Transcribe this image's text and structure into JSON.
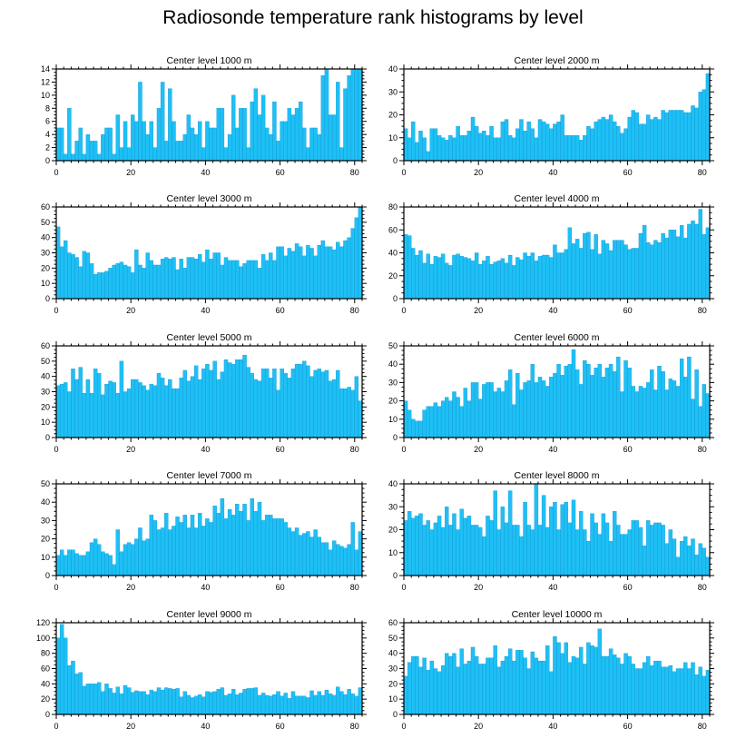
{
  "page": {
    "title": "Radiosonde temperature rank histograms by level"
  },
  "colors": {
    "bar": "#1ec0f5",
    "bar_edge": "#0a88c8",
    "axis": "#000000"
  },
  "chart_data": [
    {
      "type": "bar",
      "title": "Center level 1000 m",
      "xlim": [
        0,
        82
      ],
      "ylim": [
        0,
        14
      ],
      "xticks": [
        0,
        20,
        40,
        60,
        80
      ],
      "yticks": [
        0,
        2,
        4,
        6,
        8,
        10,
        12,
        14
      ],
      "xtick_labels": [
        "0",
        "20",
        "40",
        "60",
        "80"
      ],
      "ytick_labels": [
        "0",
        "2",
        "4",
        "6",
        "8",
        "10",
        "12",
        "14"
      ],
      "values": [
        5,
        5,
        1,
        8,
        1,
        3,
        5,
        1,
        4,
        3,
        3,
        1,
        4,
        5,
        5,
        1,
        7,
        2,
        6,
        2,
        7,
        6,
        12,
        6,
        4,
        6,
        2,
        8,
        12,
        3,
        11,
        6,
        3,
        3,
        4,
        7,
        5,
        4,
        6,
        2,
        6,
        5,
        5,
        8,
        8,
        2,
        4,
        10,
        5,
        8,
        8,
        2,
        9,
        11,
        7,
        10,
        5,
        4,
        9,
        3,
        6,
        6,
        8,
        7,
        8,
        9,
        5,
        2,
        5,
        5,
        4,
        13,
        14,
        7,
        7,
        12,
        2,
        11,
        13,
        14,
        14,
        14
      ]
    },
    {
      "type": "bar",
      "title": "Center level 2000 m",
      "xlim": [
        0,
        82
      ],
      "ylim": [
        0,
        40
      ],
      "xticks": [
        0,
        20,
        40,
        60,
        80
      ],
      "yticks": [
        0,
        10,
        20,
        30,
        40
      ],
      "xtick_labels": [
        "0",
        "20",
        "40",
        "60",
        "80"
      ],
      "ytick_labels": [
        "0",
        "10",
        "20",
        "30",
        "40"
      ],
      "values": [
        14,
        10,
        17,
        8,
        13,
        10,
        4,
        14,
        14,
        11,
        10,
        9,
        11,
        10,
        15,
        11,
        11,
        13,
        19,
        15,
        12,
        13,
        11,
        15,
        10,
        10,
        17,
        18,
        11,
        10,
        14,
        18,
        13,
        17,
        14,
        10,
        18,
        17,
        16,
        14,
        16,
        17,
        20,
        11,
        11,
        11,
        11,
        9,
        11,
        15,
        14,
        17,
        18,
        19,
        18,
        20,
        17,
        15,
        12,
        14,
        19,
        22,
        21,
        16,
        16,
        20,
        18,
        19,
        18,
        22,
        21,
        22,
        22,
        22,
        22,
        21,
        21,
        24,
        23,
        30,
        31,
        38
      ]
    },
    {
      "type": "bar",
      "title": "Center level 3000 m",
      "xlim": [
        0,
        82
      ],
      "ylim": [
        0,
        60
      ],
      "xticks": [
        0,
        20,
        40,
        60,
        80
      ],
      "yticks": [
        0,
        10,
        20,
        30,
        40,
        50,
        60
      ],
      "xtick_labels": [
        "0",
        "20",
        "40",
        "60",
        "80"
      ],
      "ytick_labels": [
        "0",
        "10",
        "20",
        "30",
        "40",
        "50",
        "60"
      ],
      "values": [
        47,
        34,
        38,
        30,
        29,
        27,
        21,
        31,
        30,
        23,
        16,
        17,
        17,
        18,
        20,
        22,
        23,
        24,
        22,
        21,
        17,
        32,
        22,
        20,
        30,
        25,
        22,
        22,
        26,
        27,
        26,
        27,
        19,
        26,
        20,
        27,
        27,
        26,
        29,
        24,
        32,
        26,
        30,
        30,
        22,
        27,
        25,
        25,
        25,
        21,
        23,
        25,
        25,
        25,
        20,
        29,
        25,
        30,
        25,
        34,
        34,
        28,
        33,
        31,
        36,
        34,
        28,
        35,
        33,
        28,
        35,
        38,
        34,
        34,
        32,
        37,
        34,
        38,
        40,
        46,
        53,
        60
      ]
    },
    {
      "type": "bar",
      "title": "Center level 4000 m",
      "xlim": [
        0,
        82
      ],
      "ylim": [
        0,
        80
      ],
      "xticks": [
        0,
        20,
        40,
        60,
        80
      ],
      "yticks": [
        0,
        20,
        40,
        60,
        80
      ],
      "xtick_labels": [
        "0",
        "20",
        "40",
        "60",
        "80"
      ],
      "ytick_labels": [
        "0",
        "20",
        "40",
        "60",
        "80"
      ],
      "values": [
        56,
        55,
        44,
        38,
        42,
        31,
        39,
        30,
        37,
        36,
        39,
        31,
        29,
        38,
        39,
        37,
        36,
        35,
        33,
        40,
        30,
        33,
        37,
        30,
        32,
        33,
        35,
        31,
        38,
        29,
        36,
        34,
        40,
        37,
        40,
        33,
        37,
        38,
        38,
        36,
        47,
        40,
        40,
        43,
        62,
        48,
        52,
        44,
        57,
        58,
        43,
        56,
        39,
        51,
        48,
        42,
        51,
        51,
        51,
        47,
        43,
        44,
        44,
        57,
        64,
        49,
        47,
        51,
        49,
        57,
        53,
        60,
        60,
        54,
        64,
        53,
        65,
        68,
        65,
        78,
        56,
        62
      ]
    },
    {
      "type": "bar",
      "title": "Center level 5000 m",
      "xlim": [
        0,
        82
      ],
      "ylim": [
        0,
        60
      ],
      "xticks": [
        0,
        20,
        40,
        60,
        80
      ],
      "yticks": [
        0,
        10,
        20,
        30,
        40,
        50,
        60
      ],
      "xtick_labels": [
        "0",
        "20",
        "40",
        "60",
        "80"
      ],
      "ytick_labels": [
        "0",
        "10",
        "20",
        "30",
        "40",
        "50",
        "60"
      ],
      "values": [
        34,
        35,
        36,
        30,
        45,
        38,
        46,
        29,
        38,
        29,
        45,
        42,
        28,
        35,
        37,
        36,
        29,
        50,
        30,
        32,
        38,
        38,
        36,
        34,
        31,
        35,
        34,
        42,
        39,
        34,
        38,
        32,
        32,
        39,
        44,
        37,
        40,
        47,
        38,
        45,
        48,
        44,
        50,
        38,
        43,
        51,
        49,
        48,
        51,
        51,
        54,
        46,
        42,
        38,
        37,
        45,
        45,
        39,
        45,
        31,
        45,
        42,
        39,
        45,
        48,
        48,
        50,
        47,
        40,
        44,
        45,
        43,
        44,
        37,
        38,
        44,
        32,
        32,
        33,
        31,
        40,
        24
      ]
    },
    {
      "type": "bar",
      "title": "Center level 6000 m",
      "xlim": [
        0,
        82
      ],
      "ylim": [
        0,
        50
      ],
      "xticks": [
        0,
        20,
        40,
        60,
        80
      ],
      "yticks": [
        0,
        10,
        20,
        30,
        40,
        50
      ],
      "xtick_labels": [
        "0",
        "20",
        "40",
        "60",
        "80"
      ],
      "ytick_labels": [
        "0",
        "10",
        "20",
        "30",
        "40",
        "50"
      ],
      "values": [
        20,
        15,
        10,
        9,
        9,
        15,
        17,
        17,
        19,
        17,
        20,
        22,
        20,
        25,
        22,
        17,
        27,
        20,
        30,
        30,
        21,
        29,
        30,
        30,
        25,
        27,
        25,
        31,
        37,
        18,
        35,
        26,
        30,
        31,
        40,
        30,
        33,
        31,
        28,
        33,
        35,
        40,
        34,
        39,
        40,
        48,
        37,
        29,
        42,
        40,
        34,
        38,
        40,
        33,
        38,
        40,
        36,
        44,
        25,
        42,
        38,
        28,
        25,
        28,
        27,
        30,
        37,
        26,
        39,
        36,
        26,
        32,
        31,
        28,
        43,
        33,
        44,
        21,
        37,
        17,
        29,
        24
      ]
    },
    {
      "type": "bar",
      "title": "Center level 7000 m",
      "xlim": [
        0,
        82
      ],
      "ylim": [
        0,
        50
      ],
      "xticks": [
        0,
        20,
        40,
        60,
        80
      ],
      "yticks": [
        0,
        10,
        20,
        30,
        40,
        50
      ],
      "xtick_labels": [
        "0",
        "20",
        "40",
        "60",
        "80"
      ],
      "ytick_labels": [
        "0",
        "10",
        "20",
        "30",
        "40",
        "50"
      ],
      "values": [
        11,
        14,
        11,
        14,
        14,
        12,
        11,
        11,
        13,
        18,
        20,
        17,
        13,
        12,
        11,
        6,
        25,
        13,
        17,
        18,
        17,
        20,
        26,
        19,
        20,
        33,
        30,
        25,
        26,
        34,
        25,
        27,
        32,
        29,
        33,
        26,
        33,
        26,
        34,
        27,
        31,
        29,
        38,
        34,
        42,
        31,
        36,
        33,
        39,
        35,
        39,
        30,
        42,
        35,
        40,
        30,
        33,
        33,
        31,
        31,
        31,
        29,
        26,
        24,
        26,
        22,
        23,
        24,
        21,
        25,
        21,
        18,
        18,
        14,
        19,
        17,
        16,
        15,
        17,
        29,
        14,
        24
      ]
    },
    {
      "type": "bar",
      "title": "Center level 8000 m",
      "xlim": [
        0,
        82
      ],
      "ylim": [
        0,
        40
      ],
      "xticks": [
        0,
        20,
        40,
        60,
        80
      ],
      "yticks": [
        0,
        10,
        20,
        30,
        40
      ],
      "xtick_labels": [
        "0",
        "20",
        "40",
        "60",
        "80"
      ],
      "ytick_labels": [
        "0",
        "10",
        "20",
        "30",
        "40"
      ],
      "values": [
        24,
        28,
        25,
        26,
        27,
        22,
        24,
        20,
        23,
        26,
        21,
        30,
        22,
        27,
        20,
        29,
        25,
        26,
        22,
        22,
        21,
        17,
        26,
        24,
        37,
        20,
        30,
        23,
        37,
        22,
        22,
        17,
        32,
        22,
        20,
        40,
        22,
        35,
        21,
        30,
        32,
        20,
        31,
        32,
        23,
        33,
        20,
        28,
        20,
        15,
        27,
        23,
        18,
        27,
        23,
        15,
        28,
        22,
        18,
        18,
        20,
        24,
        24,
        21,
        13,
        24,
        22,
        23,
        23,
        22,
        14,
        20,
        16,
        8,
        15,
        17,
        13,
        16,
        9,
        14,
        12,
        8
      ]
    },
    {
      "type": "bar",
      "title": "Center level 9000 m",
      "xlim": [
        0,
        82
      ],
      "ylim": [
        0,
        120
      ],
      "xticks": [
        0,
        20,
        40,
        60,
        80
      ],
      "yticks": [
        0,
        20,
        40,
        60,
        80,
        100,
        120
      ],
      "xtick_labels": [
        "0",
        "20",
        "40",
        "60",
        "80"
      ],
      "ytick_labels": [
        "0",
        "20",
        "40",
        "60",
        "80",
        "100",
        "120"
      ],
      "values": [
        100,
        118,
        100,
        64,
        70,
        53,
        55,
        37,
        40,
        40,
        40,
        42,
        30,
        40,
        34,
        28,
        36,
        27,
        38,
        35,
        29,
        31,
        30,
        30,
        26,
        32,
        30,
        35,
        32,
        35,
        34,
        33,
        34,
        23,
        30,
        25,
        22,
        24,
        26,
        23,
        30,
        29,
        30,
        33,
        35,
        25,
        27,
        33,
        26,
        28,
        33,
        34,
        34,
        35,
        25,
        28,
        25,
        24,
        26,
        30,
        24,
        28,
        21,
        30,
        24,
        24,
        24,
        22,
        31,
        25,
        30,
        25,
        32,
        27,
        25,
        36,
        30,
        26,
        33,
        27,
        24,
        35
      ]
    },
    {
      "type": "bar",
      "title": "Center level 10000 m",
      "xlim": [
        0,
        82
      ],
      "ylim": [
        0,
        60
      ],
      "xticks": [
        0,
        20,
        40,
        60,
        80
      ],
      "yticks": [
        0,
        10,
        20,
        30,
        40,
        50,
        60
      ],
      "xtick_labels": [
        "0",
        "20",
        "40",
        "60",
        "80"
      ],
      "ytick_labels": [
        "0",
        "10",
        "20",
        "30",
        "40",
        "50",
        "60"
      ],
      "values": [
        25,
        34,
        38,
        38,
        31,
        37,
        29,
        35,
        30,
        28,
        32,
        40,
        38,
        40,
        31,
        43,
        33,
        35,
        44,
        38,
        33,
        33,
        37,
        37,
        45,
        31,
        35,
        38,
        43,
        35,
        42,
        42,
        37,
        30,
        41,
        37,
        35,
        35,
        45,
        28,
        51,
        47,
        40,
        47,
        34,
        38,
        37,
        44,
        33,
        47,
        45,
        44,
        56,
        38,
        38,
        43,
        39,
        37,
        33,
        40,
        38,
        33,
        30,
        30,
        34,
        38,
        32,
        35,
        35,
        31,
        31,
        32,
        28,
        30,
        30,
        34,
        30,
        34,
        26,
        31,
        25,
        29
      ]
    }
  ]
}
